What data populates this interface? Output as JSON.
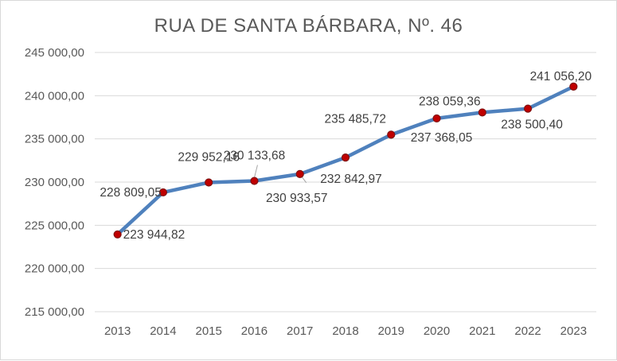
{
  "chart_data": {
    "type": "line",
    "title": "RUA DE SANTA BÁRBARA, Nº. 46",
    "categories": [
      "2013",
      "2014",
      "2015",
      "2016",
      "2017",
      "2018",
      "2019",
      "2020",
      "2021",
      "2022",
      "2023"
    ],
    "series": [
      {
        "values": [
          223944.82,
          228809.05,
          229952.16,
          230133.68,
          230933.57,
          232842.97,
          235485.72,
          237368.05,
          238059.36,
          238500.4,
          241056.2
        ],
        "data_labels": [
          "223 944,82",
          "228 809,05",
          "229 952,16",
          "230 133,68",
          "230 933,57",
          "232 842,97",
          "235 485,72",
          "237 368,05",
          "238 059,36",
          "238 500,40",
          "241 056,20"
        ]
      }
    ],
    "ylim": [
      215000,
      245000
    ],
    "yticks": [
      215000,
      220000,
      225000,
      230000,
      235000,
      240000,
      245000
    ],
    "ytick_labels": [
      "215 000,00",
      "220 000,00",
      "225 000,00",
      "230 000,00",
      "235 000,00",
      "240 000,00",
      "245 000,00"
    ],
    "grid": true,
    "colors": {
      "line": "#4f81bd",
      "marker_fill": "#c00000",
      "marker_edge": "#7f1010",
      "grid": "#d9d9d9"
    }
  }
}
